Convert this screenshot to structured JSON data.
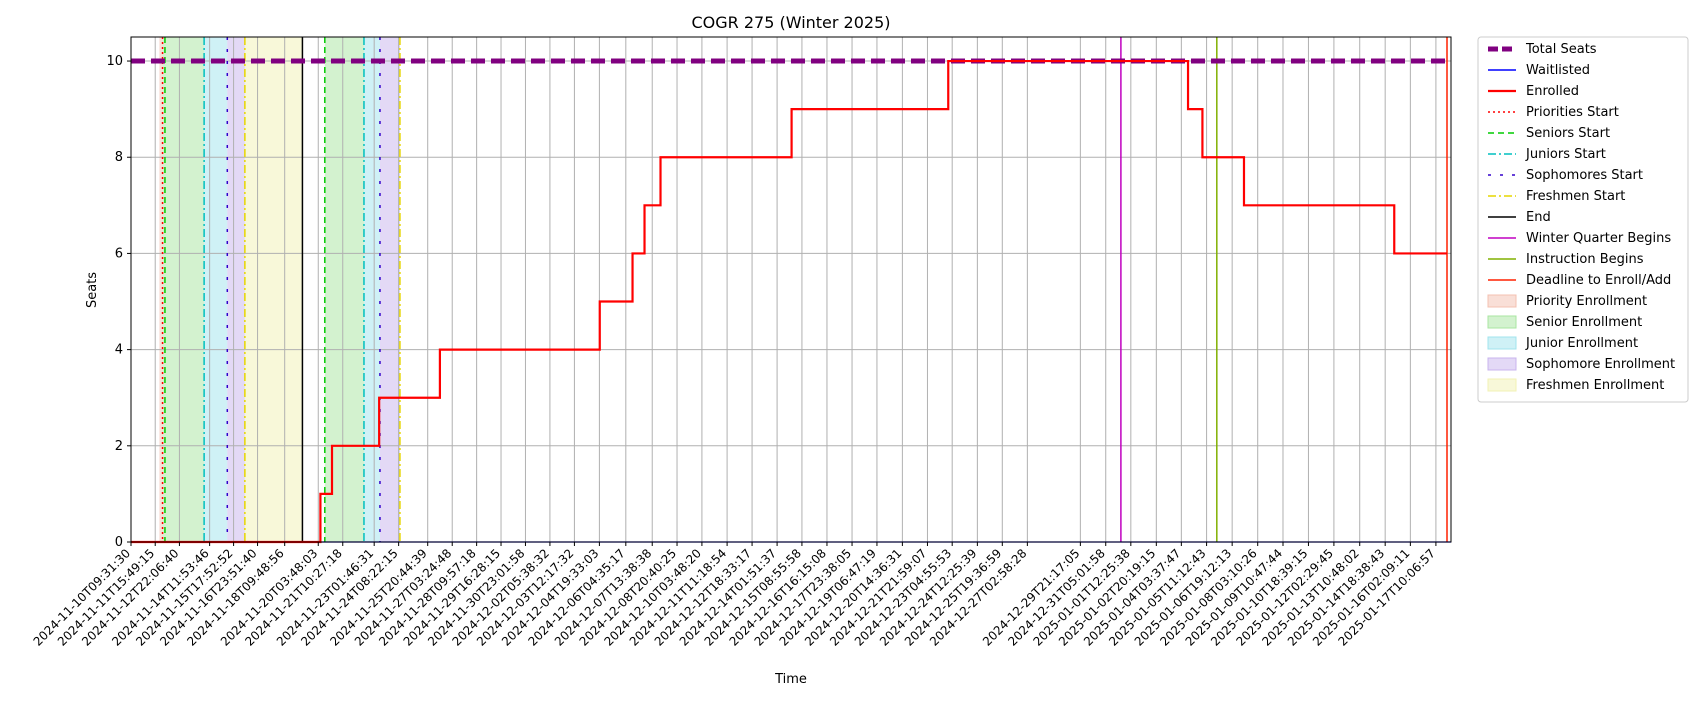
{
  "chart_data": {
    "type": "line",
    "title": "COGR 275 (Winter 2025)",
    "xlabel": "Time",
    "ylabel": "Seats",
    "ylim": [
      0,
      10.5
    ],
    "xlim": [
      "2024-11-10T09:31:30",
      "2025-01-18T05:00:00"
    ],
    "yticks": [
      0,
      2,
      4,
      6,
      8,
      10
    ],
    "grid": true,
    "legend_position": "outside-right",
    "x_tick_labels": [
      "2024-11-10T09:31:30",
      "2024-11-11T15:49:15",
      "2024-11-12T22:06:40",
      "2024-11-14T11:53:46",
      "2024-11-15T17:52:52",
      "2024-11-16T23:51:40",
      "2024-11-18T09:48:56",
      "2024-11-20T03:48:03",
      "2024-11-21T10:27:18",
      "2024-11-23T01:46:31",
      "2024-11-24T08:22:15",
      "2024-11-25T20:44:39",
      "2024-11-27T03:24:48",
      "2024-11-28T09:57:18",
      "2024-11-29T16:28:15",
      "2024-11-30T23:01:58",
      "2024-12-02T05:38:32",
      "2024-12-03T12:17:32",
      "2024-12-04T19:33:03",
      "2024-12-06T04:35:17",
      "2024-12-07T13:38:38",
      "2024-12-08T20:40:25",
      "2024-12-10T03:48:20",
      "2024-12-11T11:18:54",
      "2024-12-12T18:33:17",
      "2024-12-14T01:51:37",
      "2024-12-15T08:55:58",
      "2024-12-16T16:15:08",
      "2024-12-17T23:38:05",
      "2024-12-19T06:47:19",
      "2024-12-20T14:36:31",
      "2024-12-21T21:59:07",
      "2024-12-23T04:55:53",
      "2024-12-24T12:25:39",
      "2024-12-25T19:36:59",
      "2024-12-27T02:58:28",
      "2024-12-29T21:17:05",
      "2024-12-31T05:01:58",
      "2025-01-01T12:25:38",
      "2025-01-02T20:19:15",
      "2025-01-04T03:37:47",
      "2025-01-05T11:12:43",
      "2025-01-06T19:12:13",
      "2025-01-08T03:10:26",
      "2025-01-09T10:47:44",
      "2025-01-10T18:39:15",
      "2025-01-12T02:29:45",
      "2025-01-13T10:48:02",
      "2025-01-14T18:38:43",
      "2025-01-16T02:09:11",
      "2025-01-17T10:06:57"
    ],
    "series": [
      {
        "name": "Total Seats",
        "color": "#800080",
        "style": "dashed-thick",
        "x": [
          "2024-11-10T09:31:30",
          "2025-01-18T05:00:00"
        ],
        "y": [
          10,
          10
        ]
      },
      {
        "name": "Waitlisted",
        "color": "#0000ff",
        "style": "solid",
        "x": [
          "2024-11-10T09:31:30",
          "2025-01-18T05:00:00"
        ],
        "y": [
          0,
          0
        ]
      },
      {
        "name": "Enrolled",
        "color": "#ff0000",
        "style": "step-solid",
        "x": [
          "2024-11-10T09:31:30",
          "2024-11-20T06:30:00",
          "2024-11-20T21:00:00",
          "2024-11-23T08:00:00",
          "2024-11-26T12:00:00",
          "2024-12-04T20:00:00",
          "2024-12-06T13:00:00",
          "2024-12-07T04:00:00",
          "2024-12-08T00:00:00",
          "2024-12-14T20:00:00",
          "2024-12-23T00:00:00",
          "2024-12-24T15:00:00",
          "2025-01-04T12:00:00",
          "2025-01-05T06:00:00",
          "2025-01-07T10:00:00",
          "2025-01-10T12:00:00",
          "2025-01-15T06:00:00",
          "2025-01-18T00:00:00"
        ],
        "y": [
          0,
          1,
          2,
          3,
          4,
          5,
          6,
          7,
          8,
          9,
          10,
          10,
          9,
          8,
          7,
          7,
          6,
          6
        ]
      }
    ],
    "markers": [
      {
        "name": "Priorities Start",
        "color": "#ff0000",
        "style": "dotted",
        "x": [
          "2024-11-12T01:00:00"
        ]
      },
      {
        "name": "Seniors Start",
        "color": "#00cc00",
        "style": "dashed",
        "x": [
          "2024-11-12T04:00:00",
          "2024-11-20T12:00:00"
        ]
      },
      {
        "name": "Juniors Start",
        "color": "#00bfbf",
        "style": "dashdot",
        "x": [
          "2024-11-14T05:00:00",
          "2024-11-22T13:00:00"
        ]
      },
      {
        "name": "Sophomores Start",
        "color": "#3300cc",
        "style": "dashdot-sparse",
        "x": [
          "2024-11-15T10:00:00",
          "2024-11-23T09:00:00"
        ]
      },
      {
        "name": "Freshmen Start",
        "color": "#e6d600",
        "style": "dashdot",
        "x": [
          "2024-11-16T08:00:00",
          "2024-11-24T10:00:00"
        ]
      },
      {
        "name": "End",
        "color": "#000000",
        "style": "solid",
        "x": [
          "2024-11-19T08:00:00"
        ]
      },
      {
        "name": "Winter Quarter Begins",
        "color": "#c000c0",
        "style": "solid",
        "x": [
          "2025-01-01T00:00:00"
        ]
      },
      {
        "name": "Instruction Begins",
        "color": "#80b000",
        "style": "solid",
        "x": [
          "2025-01-06T00:00:00"
        ]
      },
      {
        "name": "Deadline to Enroll/Add",
        "color": "#ff2000",
        "style": "solid",
        "x": [
          "2025-01-18T00:00:00"
        ]
      }
    ],
    "regions": [
      {
        "name": "Priority Enrollment",
        "color": "#f4c0b0",
        "spans": [
          [
            "2024-11-11T21:00:00",
            "2024-11-12T01:00:00"
          ]
        ]
      },
      {
        "name": "Senior Enrollment",
        "color": "#a8e6a0",
        "spans": [
          [
            "2024-11-12T01:00:00",
            "2024-11-14T05:00:00"
          ],
          [
            "2024-11-20T12:00:00",
            "2024-11-22T13:00:00"
          ]
        ]
      },
      {
        "name": "Junior Enrollment",
        "color": "#a0e4ee",
        "spans": [
          [
            "2024-11-14T05:00:00",
            "2024-11-15T10:00:00"
          ],
          [
            "2024-11-22T13:00:00",
            "2024-11-23T09:00:00"
          ]
        ]
      },
      {
        "name": "Sophomore Enrollment",
        "color": "#c8b4ee",
        "spans": [
          [
            "2024-11-15T10:00:00",
            "2024-11-16T08:00:00"
          ],
          [
            "2024-11-23T09:00:00",
            "2024-11-24T10:00:00"
          ]
        ]
      },
      {
        "name": "Freshmen Enrollment",
        "color": "#f2f2b4",
        "spans": [
          [
            "2024-11-16T08:00:00",
            "2024-11-19T08:00:00"
          ]
        ]
      }
    ],
    "legend_order": [
      "Total Seats",
      "Waitlisted",
      "Enrolled",
      "Priorities Start",
      "Seniors Start",
      "Juniors Start",
      "Sophomores Start",
      "Freshmen Start",
      "End",
      "Winter Quarter Begins",
      "Instruction Begins",
      "Deadline to Enroll/Add",
      "Priority Enrollment",
      "Senior Enrollment",
      "Junior Enrollment",
      "Sophomore Enrollment",
      "Freshmen Enrollment"
    ]
  }
}
